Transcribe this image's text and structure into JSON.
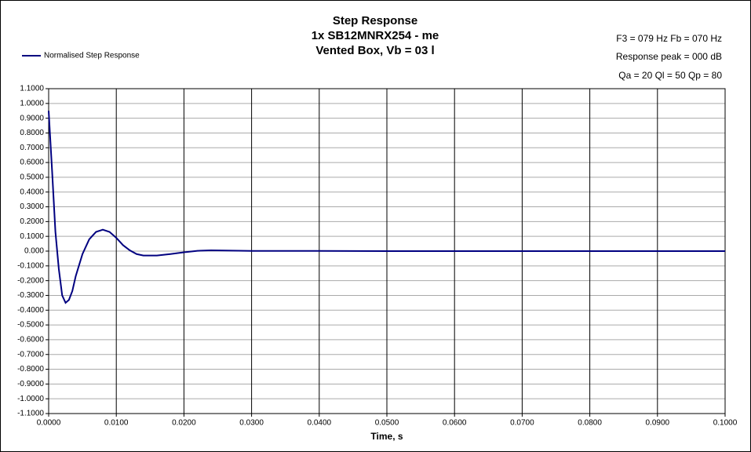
{
  "chart_data": {
    "type": "line",
    "title": [
      "Step Response",
      "1x SB12MNRX254 - me",
      "Vented Box, Vb = 03 l"
    ],
    "annotations": [
      "F3 = 079 Hz  Fb = 070 Hz",
      "Response peak = 000 dB",
      "Qa = 20  Ql = 50  Qp = 80"
    ],
    "x_label": "Time, s",
    "legend": "top-left",
    "grid": true,
    "x": [
      0,
      0.0005,
      0.001,
      0.0015,
      0.002,
      0.0025,
      0.003,
      0.0035,
      0.004,
      0.005,
      0.006,
      0.007,
      0.008,
      0.009,
      0.01,
      0.011,
      0.012,
      0.013,
      0.014,
      0.016,
      0.018,
      0.02,
      0.022,
      0.024,
      0.026,
      0.03,
      0.04,
      0.05,
      0.1
    ],
    "series": [
      {
        "name": "Normalised Step Response",
        "color": "#000080",
        "values": [
          0.95,
          0.55,
          0.13,
          -0.12,
          -0.3,
          -0.35,
          -0.33,
          -0.27,
          -0.17,
          -0.02,
          0.08,
          0.13,
          0.145,
          0.13,
          0.09,
          0.04,
          0.005,
          -0.02,
          -0.03,
          -0.03,
          -0.02,
          -0.008,
          0.002,
          0.005,
          0.004,
          0.001,
          0.001,
          0,
          0
        ]
      }
    ],
    "xlim": [
      0,
      0.1
    ],
    "xticks": [
      {
        "value": 0,
        "label": "0.0000"
      },
      {
        "value": 0.01,
        "label": "0.0100"
      },
      {
        "value": 0.02,
        "label": "0.0200"
      },
      {
        "value": 0.03,
        "label": "0.0300"
      },
      {
        "value": 0.04,
        "label": "0.0400"
      },
      {
        "value": 0.05,
        "label": "0.0500"
      },
      {
        "value": 0.06,
        "label": "0.0600"
      },
      {
        "value": 0.07,
        "label": "0.0700"
      },
      {
        "value": 0.08,
        "label": "0.0800"
      },
      {
        "value": 0.09,
        "label": "0.0900"
      },
      {
        "value": 0.1,
        "label": "0.1000"
      }
    ],
    "ylim": [
      -1.1,
      1.1
    ],
    "yticks": [
      {
        "value": 1.1,
        "label": "1.1000"
      },
      {
        "value": 1.0,
        "label": "1.0000"
      },
      {
        "value": 0.9,
        "label": "0.9000"
      },
      {
        "value": 0.8,
        "label": "0.8000"
      },
      {
        "value": 0.7,
        "label": "0.7000"
      },
      {
        "value": 0.6,
        "label": "0.6000"
      },
      {
        "value": 0.5,
        "label": "0.5000"
      },
      {
        "value": 0.4,
        "label": "0.4000"
      },
      {
        "value": 0.3,
        "label": "0.3000"
      },
      {
        "value": 0.2,
        "label": "0.2000"
      },
      {
        "value": 0.1,
        "label": "0.1000"
      },
      {
        "value": 0,
        "label": "0.000"
      },
      {
        "value": -0.1,
        "label": "-0.1000"
      },
      {
        "value": -0.2,
        "label": "-0.2000"
      },
      {
        "value": -0.3,
        "label": "-0.3000"
      },
      {
        "value": -0.4,
        "label": "-0.4000"
      },
      {
        "value": -0.5,
        "label": "-0.5000"
      },
      {
        "value": -0.6,
        "label": "-0.6000"
      },
      {
        "value": -0.7,
        "label": "-0.7000"
      },
      {
        "value": -0.8,
        "label": "-0.8000"
      },
      {
        "value": -0.9,
        "label": "-0.9000"
      },
      {
        "value": -1.0,
        "label": "-1.0000"
      },
      {
        "value": -1.1,
        "label": "-1.1000"
      }
    ]
  }
}
